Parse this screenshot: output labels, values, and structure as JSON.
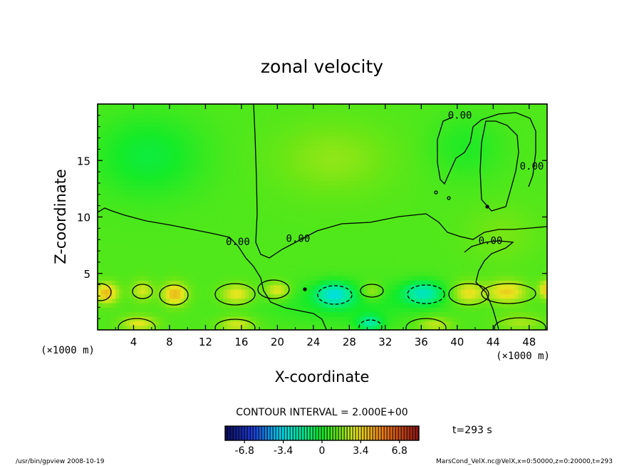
{
  "chart_data": {
    "type": "heatmap",
    "title": "zonal velocity",
    "xlabel": "X-coordinate",
    "ylabel": "Z-coordinate",
    "x_unit": "(×1000 m)",
    "z_unit": "(×1000 m)",
    "xlim": [
      0,
      50
    ],
    "ylim": [
      0,
      20
    ],
    "x_ticks": [
      4,
      8,
      12,
      16,
      20,
      24,
      28,
      32,
      36,
      40,
      44,
      48
    ],
    "y_ticks": [
      5,
      10,
      15
    ],
    "contour_labels": [
      {
        "text": "0.00",
        "x": 40.3,
        "z": 18.7
      },
      {
        "text": "0.00",
        "x": 48.3,
        "z": 14.2
      },
      {
        "text": "0.00",
        "x": 22.3,
        "z": 7.8
      },
      {
        "text": "0.00",
        "x": 15.6,
        "z": 7.5
      },
      {
        "text": "0.00",
        "x": 43.7,
        "z": 7.6
      }
    ],
    "contour_interval_text": "CONTOUR INTERVAL = 2.000E+00",
    "colorbar": {
      "ticks": [
        -6.8,
        -3.4,
        0,
        3.4,
        6.8
      ],
      "tick_labels": [
        "-6.8",
        "-3.4",
        "0",
        "3.4",
        "6.8"
      ],
      "range": [
        -8.5,
        8.5
      ]
    },
    "time_label": "t=293 s",
    "footer_left": "/usr/bin/gpview  2008-10-19",
    "footer_right": "MarsCond_VelX.nc@VelX,x=0:50000,z=0:20000,t=293",
    "anomalies": [
      {
        "x": 1.0,
        "z": 3.3,
        "sx": 1.3,
        "sz": 0.9,
        "v": 3.0
      },
      {
        "x": 5.0,
        "z": 3.5,
        "sx": 1.2,
        "sz": 0.9,
        "v": 1.8
      },
      {
        "x": 8.6,
        "z": 3.2,
        "sx": 1.4,
        "sz": 1.0,
        "v": 3.0
      },
      {
        "x": 15.5,
        "z": 3.2,
        "sx": 1.8,
        "sz": 0.9,
        "v": 2.2
      },
      {
        "x": 20.0,
        "z": 3.5,
        "sx": 1.4,
        "sz": 0.8,
        "v": 2.2
      },
      {
        "x": 26.3,
        "z": 3.2,
        "sx": 2.0,
        "sz": 1.0,
        "v": -3.4
      },
      {
        "x": 30.5,
        "z": 3.4,
        "sx": 1.2,
        "sz": 0.8,
        "v": 1.6
      },
      {
        "x": 36.2,
        "z": 3.3,
        "sx": 2.2,
        "sz": 1.0,
        "v": -3.2
      },
      {
        "x": 41.2,
        "z": 3.3,
        "sx": 1.7,
        "sz": 1.0,
        "v": 2.2
      },
      {
        "x": 45.5,
        "z": 3.4,
        "sx": 2.2,
        "sz": 1.0,
        "v": 2.5
      },
      {
        "x": 49.9,
        "z": 3.6,
        "sx": 0.8,
        "sz": 0.8,
        "v": 2.6
      },
      {
        "x": 4.6,
        "z": 0.6,
        "sx": 2.0,
        "sz": 0.7,
        "v": 2.0
      },
      {
        "x": 15.5,
        "z": 0.5,
        "sx": 2.0,
        "sz": 0.7,
        "v": 1.8
      },
      {
        "x": 30.3,
        "z": 0.6,
        "sx": 1.4,
        "sz": 0.7,
        "v": -2.6
      },
      {
        "x": 37.5,
        "z": 0.5,
        "sx": 2.0,
        "sz": 0.7,
        "v": 1.6
      },
      {
        "x": 47.0,
        "z": 0.7,
        "sx": 2.6,
        "sz": 0.8,
        "v": 1.2
      },
      {
        "x": 5.6,
        "z": 15.4,
        "sx": 6.0,
        "sz": 3.6,
        "v": -1.3
      },
      {
        "x": 26.2,
        "z": 15.2,
        "sx": 6.5,
        "sz": 3.2,
        "v": 0.9
      },
      {
        "x": 41.0,
        "z": 16.2,
        "sx": 4.0,
        "sz": 2.8,
        "v": -0.8
      },
      {
        "x": 28.0,
        "z": 2.4,
        "sx": 9.0,
        "sz": 1.8,
        "v": -1.0
      },
      {
        "x": 45.0,
        "z": 8.5,
        "sx": 4.0,
        "sz": 2.5,
        "v": 0.6
      }
    ],
    "base_value": 1.0,
    "grid": false,
    "legend": "bottom"
  }
}
